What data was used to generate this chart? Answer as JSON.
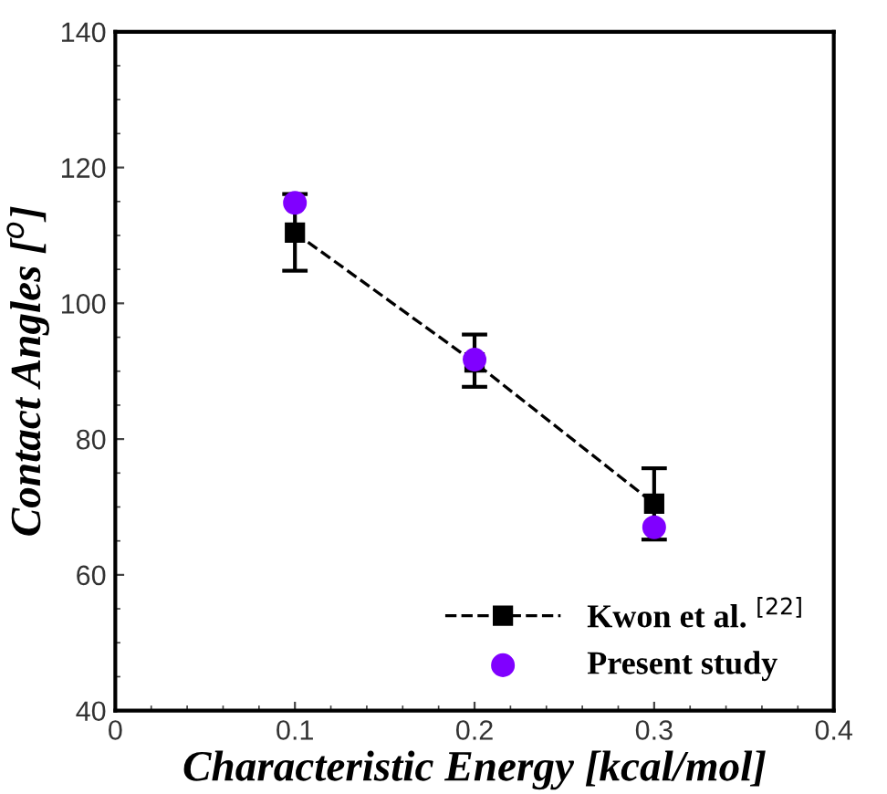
{
  "chart_data": {
    "type": "line",
    "xlabel": "Characteristic Energy [kcal/mol]",
    "ylabel": "Contact Angles [$^{o}$]",
    "xlim": [
      0,
      0.4
    ],
    "xticks": [
      0,
      0.1,
      0.2,
      0.3,
      0.4
    ],
    "ylim": [
      40,
      140
    ],
    "yticks": [
      40,
      60,
      80,
      100,
      120,
      140
    ],
    "legend": "bottom right",
    "grid": false,
    "series": [
      {
        "name": "Kwon et al. $^{[22]}$",
        "color": "#000000",
        "marker": "square",
        "line_style": "dashed",
        "x": [
          0.1,
          0.2,
          0.3
        ],
        "values": [
          110.4,
          91.3,
          70.5
        ],
        "errors": [
          [
            104.8,
            116.1
          ],
          [
            87.7,
            95.4
          ],
          [
            65.2,
            75.7
          ]
        ]
      },
      {
        "name": "Present study",
        "type": "scatter",
        "color": "#8000ff",
        "marker": "circle",
        "x": [
          0.1,
          0.2,
          0.3
        ],
        "values": [
          114.8,
          91.7,
          67.0
        ]
      }
    ]
  }
}
